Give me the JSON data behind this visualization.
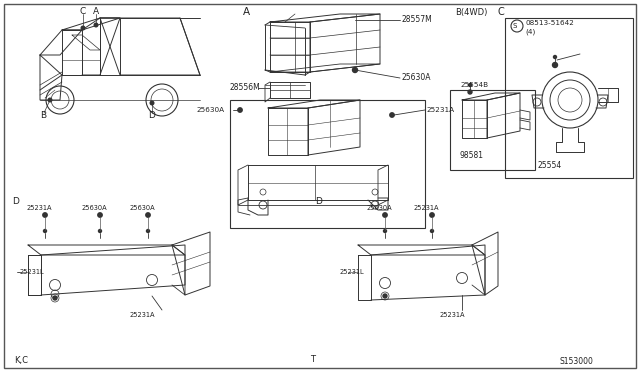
{
  "background_color": "#ffffff",
  "bottom_left_text": "K,C",
  "bottom_center_text": "T",
  "bottom_right_text": "S153000"
}
